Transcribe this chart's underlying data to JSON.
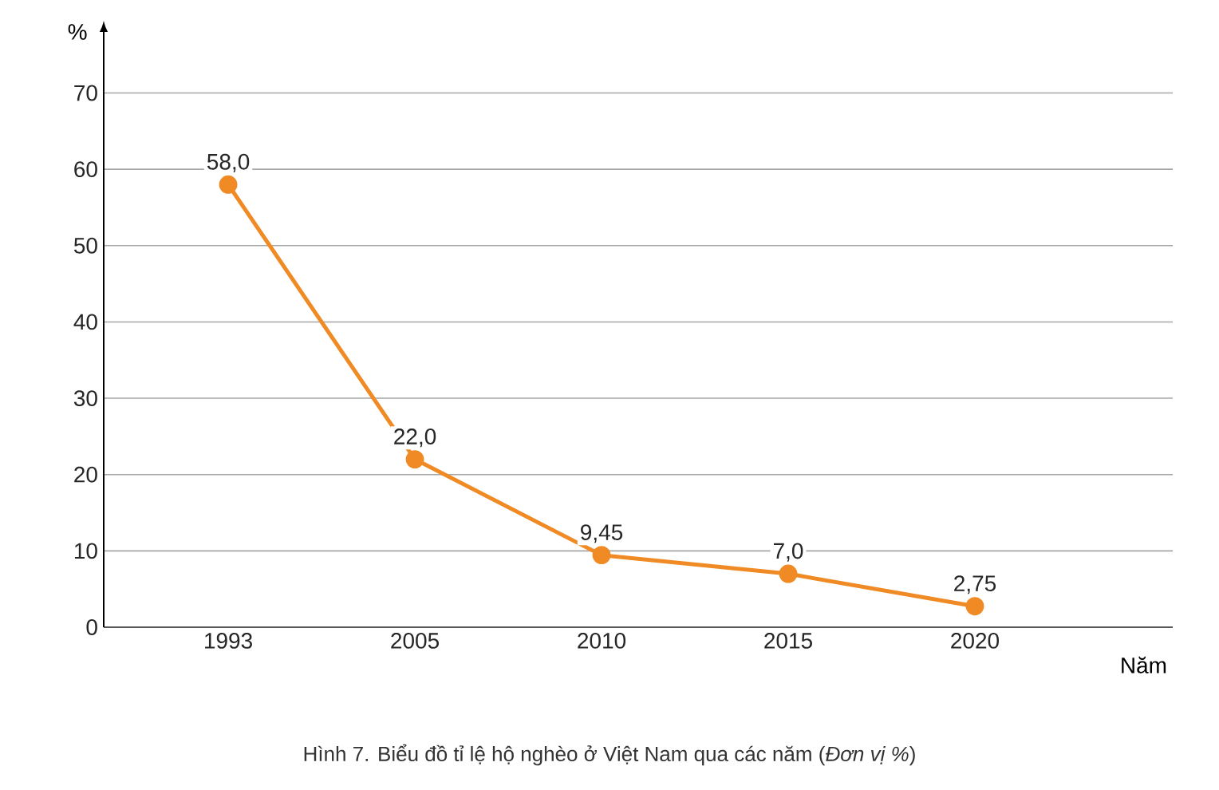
{
  "chart_data": {
    "type": "line",
    "title": "Hình 7. Biểu đồ tỉ lệ hộ nghèo ở Việt Nam qua các năm (*Đơn vị %*)",
    "xlabel": "Năm",
    "ylabel": "%",
    "categories": [
      "1993",
      "2005",
      "2010",
      "2015",
      "2020"
    ],
    "values": [
      58.0,
      22.0,
      9.45,
      7.0,
      2.75
    ],
    "value_labels": [
      "58,0",
      "22,0",
      "9,45",
      "7,0",
      "2,75"
    ],
    "color": "#f08a24",
    "ylim": [
      0,
      78
    ],
    "yticks": [
      0,
      10,
      20,
      30,
      40,
      50,
      60,
      70
    ],
    "grid": "y",
    "marker": "circle",
    "line_style": "solid"
  }
}
